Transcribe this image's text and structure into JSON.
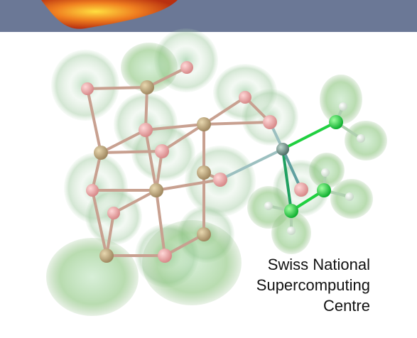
{
  "caption": {
    "lines": [
      "Swiss National",
      "Supercomputing",
      "Centre"
    ]
  }
}
